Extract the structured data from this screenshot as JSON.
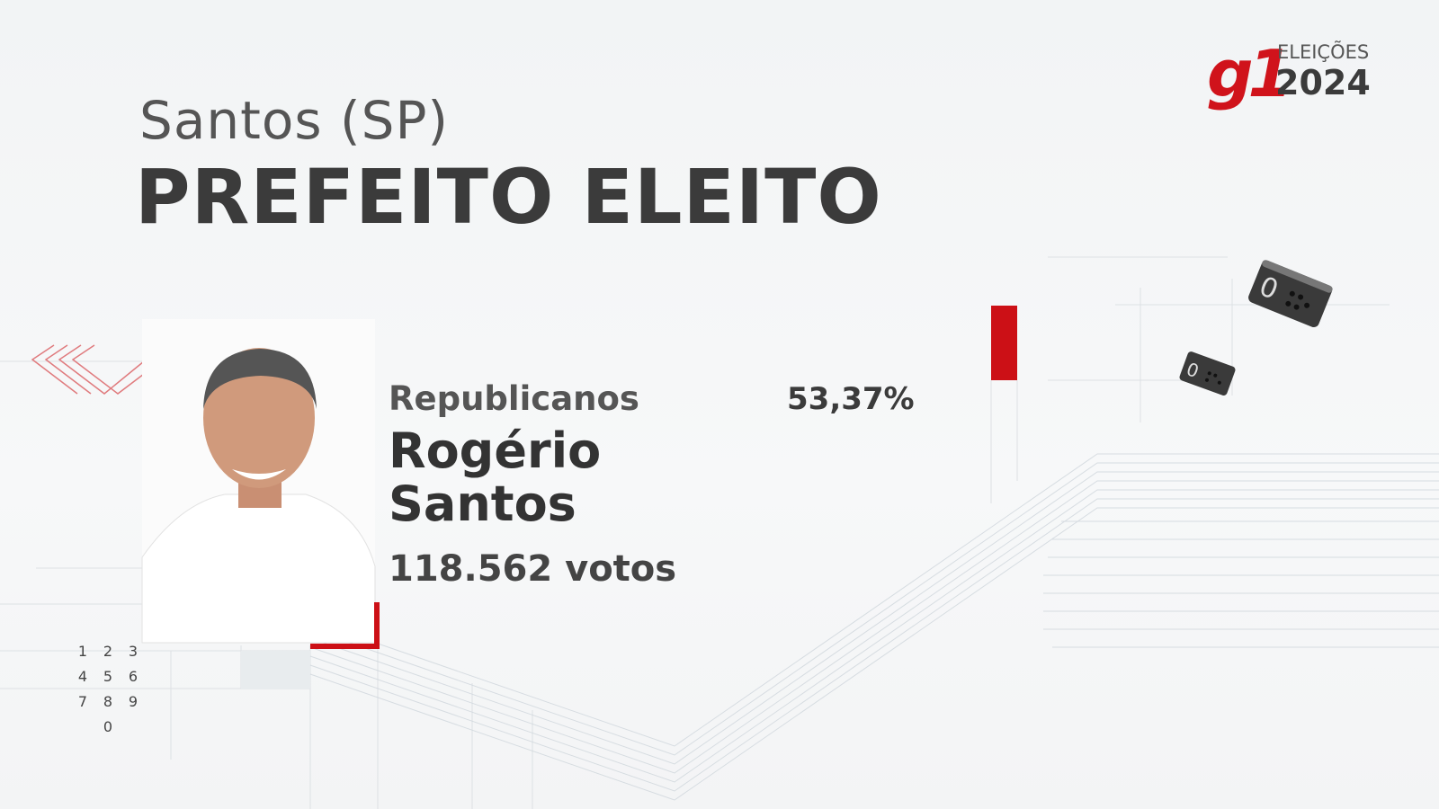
{
  "header": {
    "city": "Santos (SP)",
    "title": "PREFEITO ELEITO"
  },
  "logo": {
    "brand": "g1",
    "label": "ELEIÇÕES",
    "year": "2024"
  },
  "candidate": {
    "party": "Republicanos",
    "percent": "53,37%",
    "name": "Rogério Santos",
    "votes": "118.562 votos"
  },
  "keypad": {
    "keys": [
      "1",
      "2",
      "3",
      "4",
      "5",
      "6",
      "7",
      "8",
      "9",
      "0"
    ]
  }
}
